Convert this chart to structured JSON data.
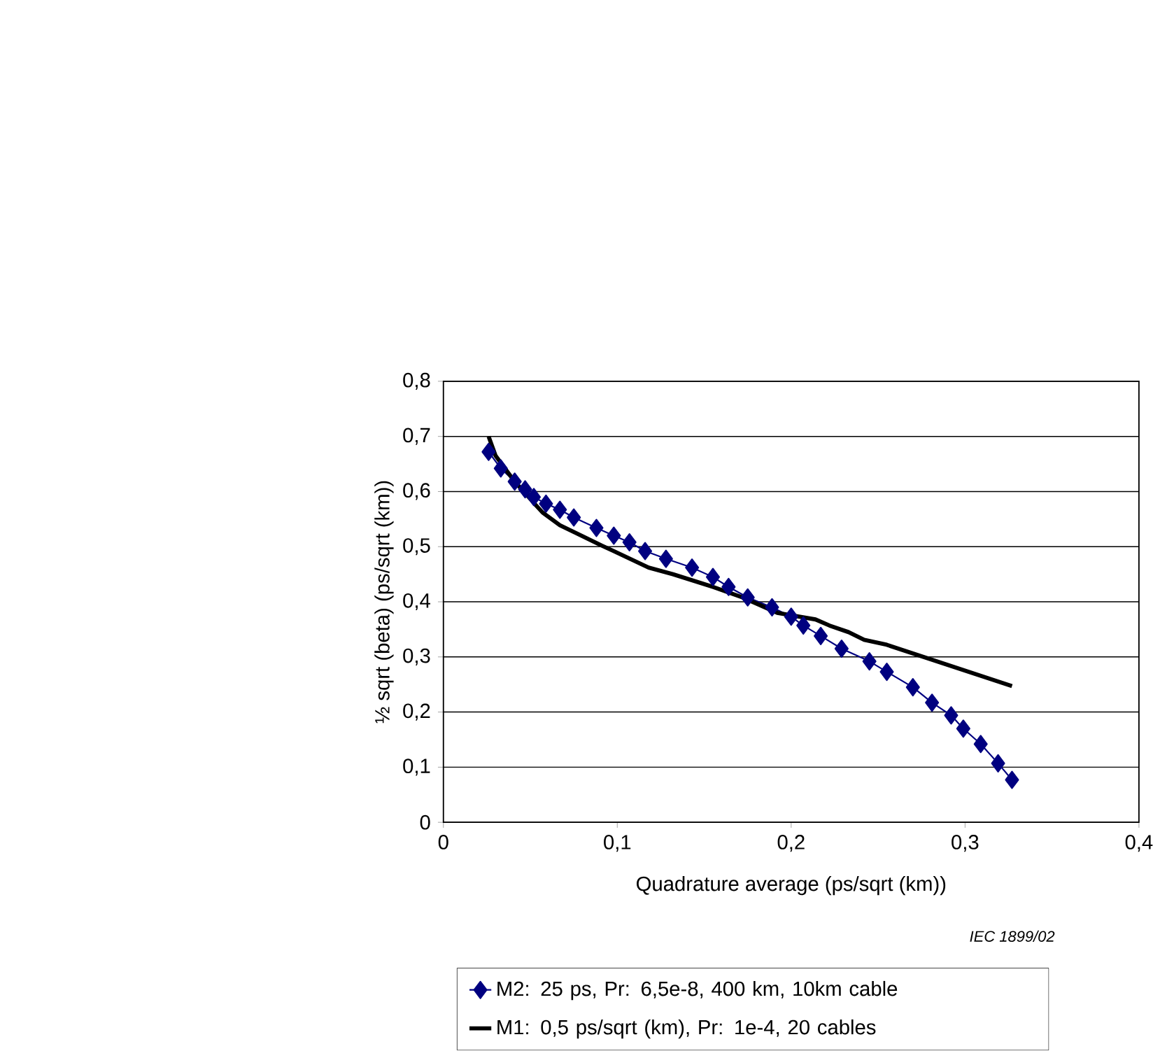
{
  "chart_data": {
    "type": "line",
    "xlabel": "Quadrature average (ps/sqrt (km))",
    "ylabel": "½ sqrt (beta) (ps/sqrt (km))",
    "xlim": [
      0,
      0.4
    ],
    "ylim": [
      0,
      0.8
    ],
    "xticks": [
      0,
      {
        "value": 0.1,
        "label": "0,1"
      },
      {
        "value": 0.2,
        "label": "0,2"
      },
      {
        "value": 0.3,
        "label": "0,3"
      },
      {
        "value": 0.4,
        "label": "0,4"
      }
    ],
    "yticks": [
      0,
      {
        "value": 0.1,
        "label": "0,1"
      },
      {
        "value": 0.2,
        "label": "0,2"
      },
      {
        "value": 0.3,
        "label": "0,3"
      },
      {
        "value": 0.4,
        "label": "0,4"
      },
      {
        "value": 0.5,
        "label": "0,5"
      },
      {
        "value": 0.6,
        "label": "0,6"
      },
      {
        "value": 0.7,
        "label": "0,7"
      },
      {
        "value": 0.8,
        "label": "0,8"
      }
    ],
    "grid": "y",
    "legend": "bottom",
    "annotations": [
      "IEC  1899/02"
    ],
    "series": [
      {
        "name": "M2: 25 ps, Pr: 6,5e-8, 400 km, 10km cable",
        "color": "#000080",
        "marker": "diamond",
        "line_style": "solid",
        "x": [
          0.026,
          0.033,
          0.041,
          0.047,
          0.052,
          0.059,
          0.067,
          0.075,
          0.088,
          0.098,
          0.107,
          0.116,
          0.128,
          0.143,
          0.155,
          0.164,
          0.175,
          0.189,
          0.2,
          0.207,
          0.217,
          0.229,
          0.245,
          0.255,
          0.27,
          0.281,
          0.292,
          0.299,
          0.309,
          0.319,
          0.327
        ],
        "values": [
          0.672,
          0.642,
          0.618,
          0.604,
          0.59,
          0.578,
          0.567,
          0.553,
          0.534,
          0.52,
          0.508,
          0.492,
          0.478,
          0.462,
          0.445,
          0.427,
          0.408,
          0.39,
          0.373,
          0.357,
          0.338,
          0.315,
          0.292,
          0.273,
          0.245,
          0.217,
          0.194,
          0.17,
          0.142,
          0.107,
          0.077
        ]
      },
      {
        "name": "M1: 0,5 ps/sqrt (km), Pr: 1e-4, 20 cables",
        "color": "#000000",
        "marker": "none",
        "line_style": "solid",
        "x": [
          0.026,
          0.03,
          0.041,
          0.057,
          0.067,
          0.091,
          0.098,
          0.118,
          0.132,
          0.155,
          0.172,
          0.192,
          0.214,
          0.222,
          0.233,
          0.242,
          0.255,
          0.327
        ],
        "values": [
          0.7,
          0.665,
          0.618,
          0.562,
          0.539,
          0.502,
          0.492,
          0.462,
          0.45,
          0.427,
          0.408,
          0.38,
          0.368,
          0.357,
          0.345,
          0.331,
          0.322,
          0.247
        ]
      }
    ]
  }
}
